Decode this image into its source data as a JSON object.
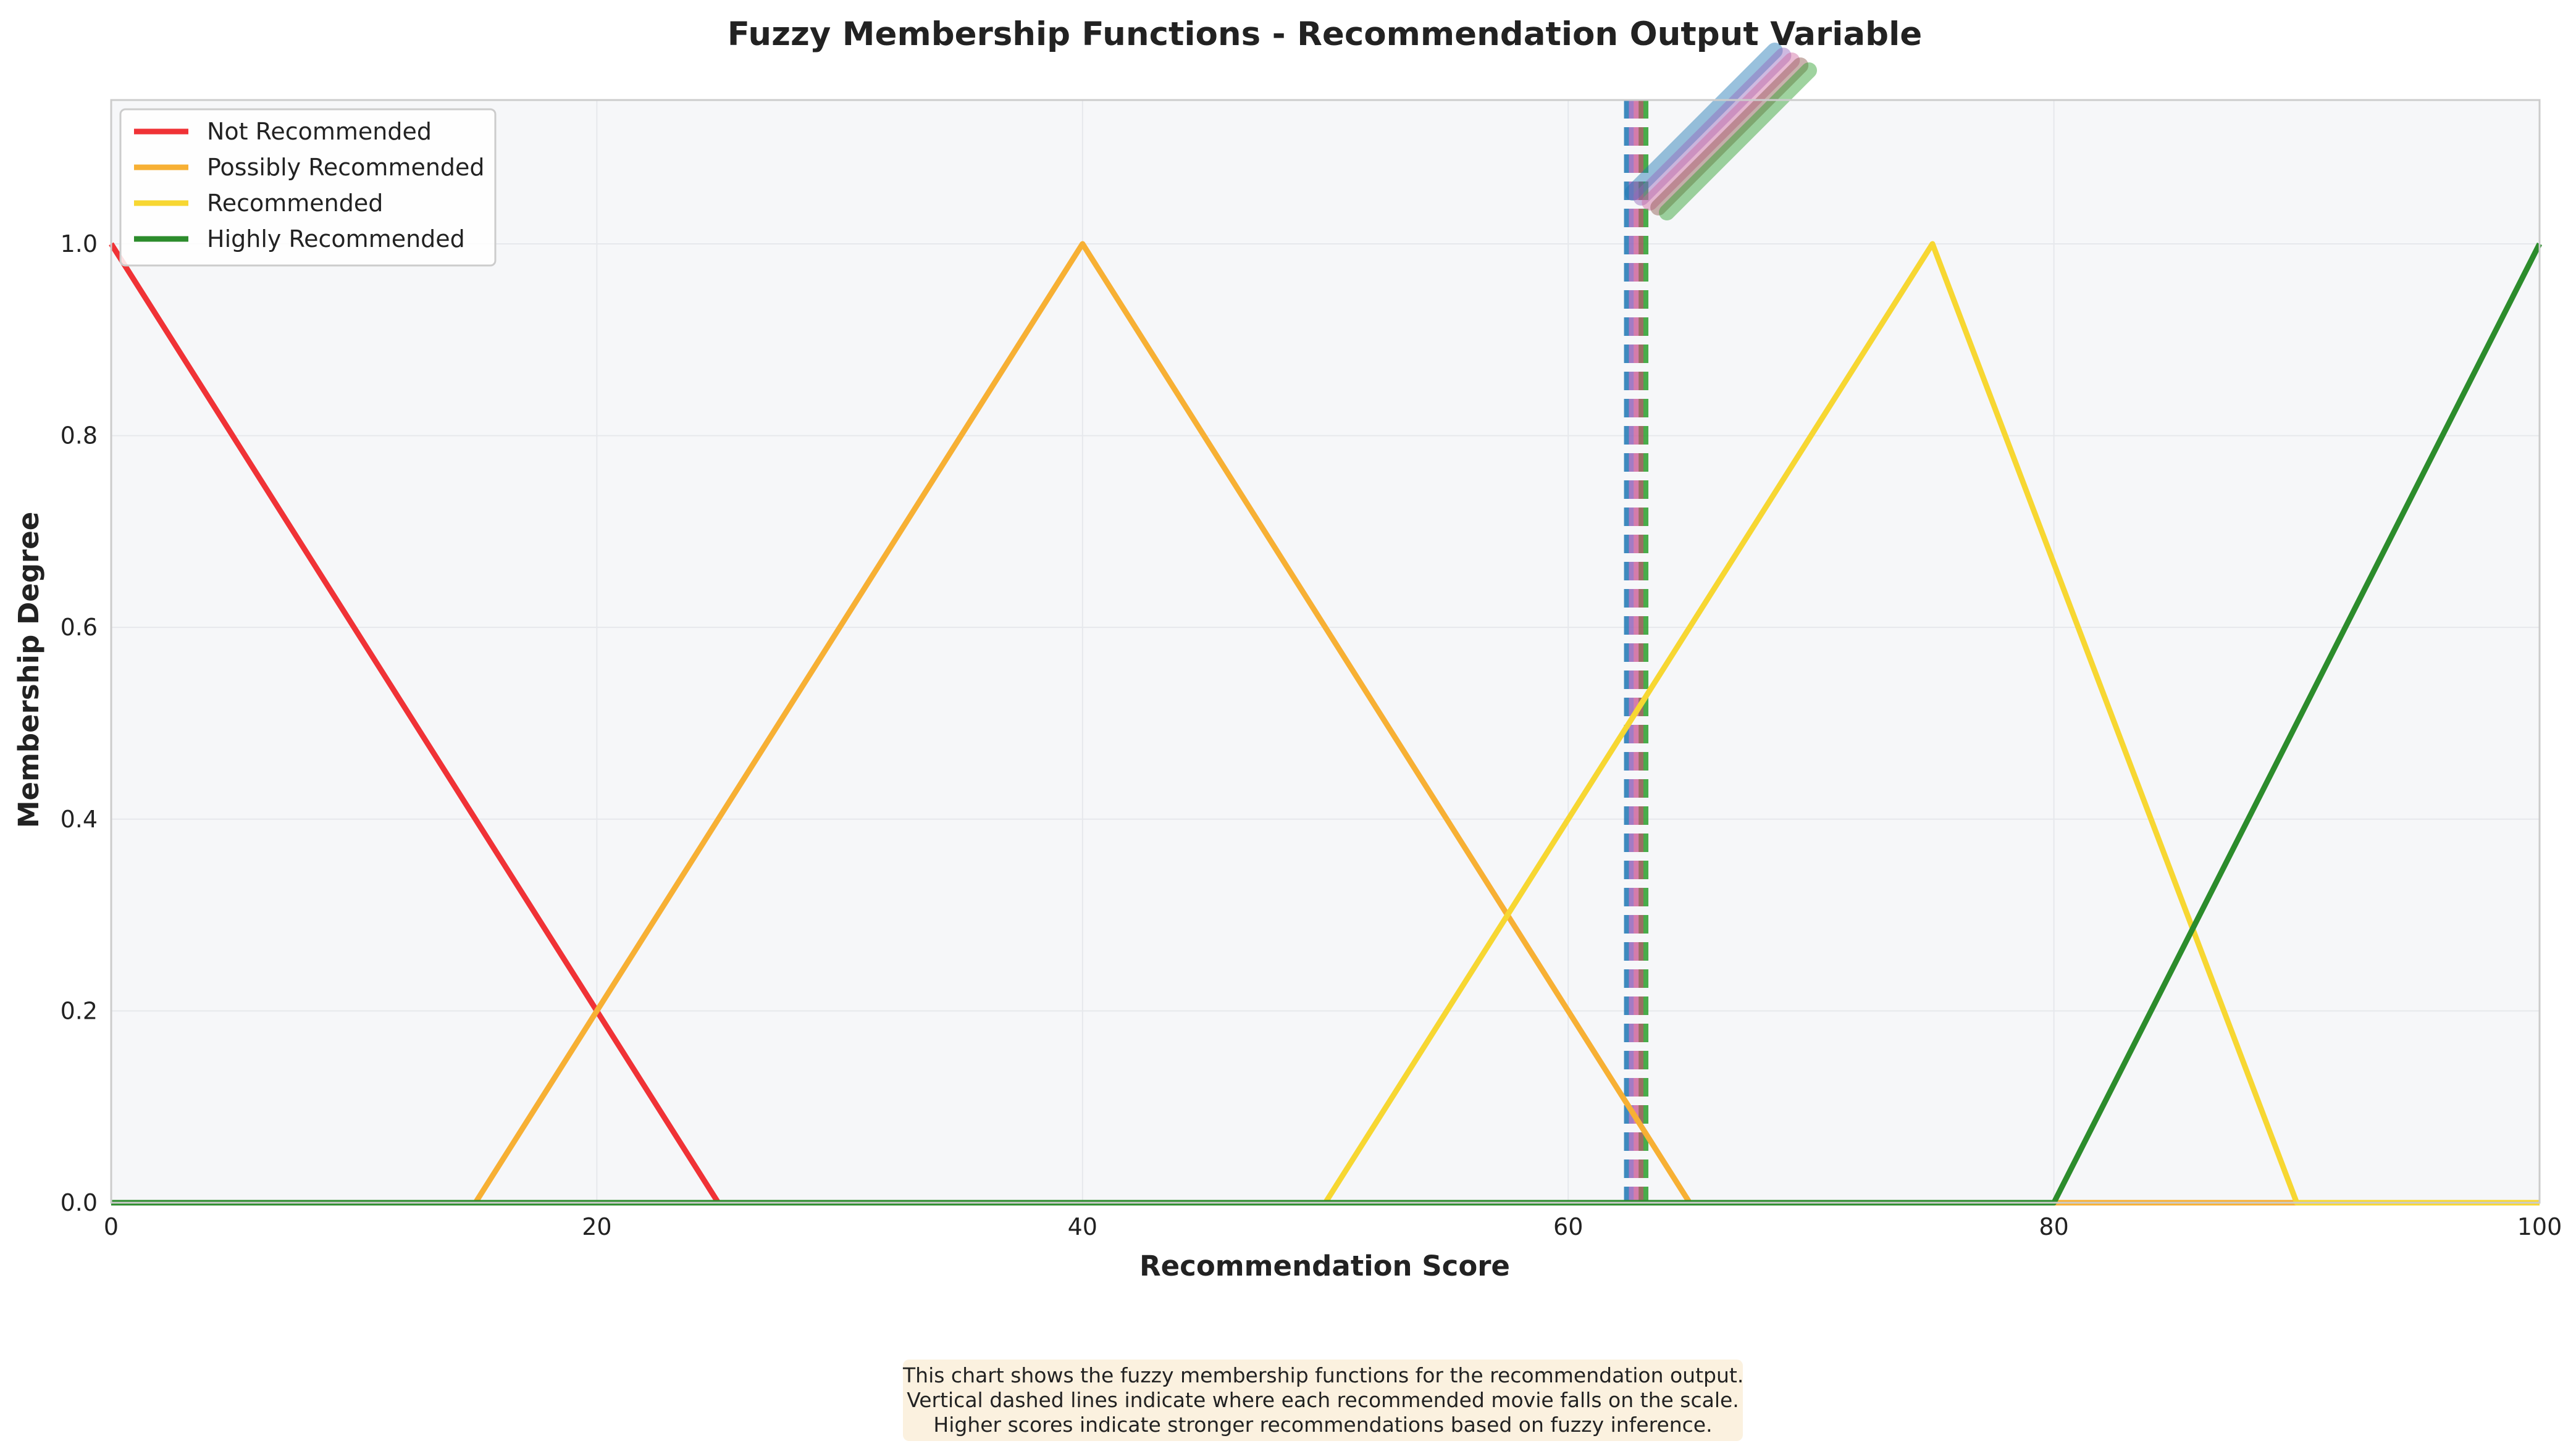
{
  "chart_data": {
    "type": "line",
    "title": "Fuzzy Membership Functions - Recommendation Output Variable",
    "xlabel": "Recommendation Score",
    "ylabel": "Membership Degree",
    "xlim": [
      0,
      100
    ],
    "ylim": [
      0,
      1.15
    ],
    "xticks": [
      0,
      20,
      40,
      60,
      80,
      100
    ],
    "xtick_labels": [
      "0",
      "20",
      "40",
      "60",
      "80",
      "100"
    ],
    "yticks": [
      0,
      0.2,
      0.4,
      0.6,
      0.8,
      1.0
    ],
    "ytick_labels": [
      "0.0",
      "0.2",
      "0.4",
      "0.6",
      "0.8",
      "1.0"
    ],
    "grid": true,
    "legend_position": "top-left",
    "series": [
      {
        "name": "Not Recommended",
        "color": "#f03236",
        "x": [
          0,
          25,
          100
        ],
        "y": [
          1.0,
          0.0,
          0.0
        ]
      },
      {
        "name": "Possibly Recommended",
        "color": "#f7b034",
        "x": [
          0,
          15,
          40,
          65,
          100
        ],
        "y": [
          0.0,
          0.0,
          1.0,
          0.0,
          0.0
        ]
      },
      {
        "name": "Recommended",
        "color": "#f7d732",
        "x": [
          0,
          50,
          75,
          90,
          100
        ],
        "y": [
          0.0,
          0.0,
          1.0,
          0.0,
          0.0
        ]
      },
      {
        "name": "Highly Recommended",
        "color": "#2c8c2c",
        "x": [
          0,
          80,
          100
        ],
        "y": [
          0.0,
          0.0,
          1.0
        ]
      }
    ],
    "vlines": [
      {
        "x": 62.4,
        "color": "#1f77b4"
      },
      {
        "x": 62.6,
        "color": "#9467bd"
      },
      {
        "x": 62.8,
        "color": "#d0679e"
      },
      {
        "x": 63.0,
        "color": "#8c564b"
      },
      {
        "x": 63.2,
        "color": "#2ca02c"
      }
    ],
    "note": [
      "This chart shows the fuzzy membership functions for the recommendation output.",
      "Vertical dashed lines indicate where each recommended movie falls on the scale.",
      "Higher scores indicate stronger recommendations based on fuzzy inference."
    ]
  }
}
